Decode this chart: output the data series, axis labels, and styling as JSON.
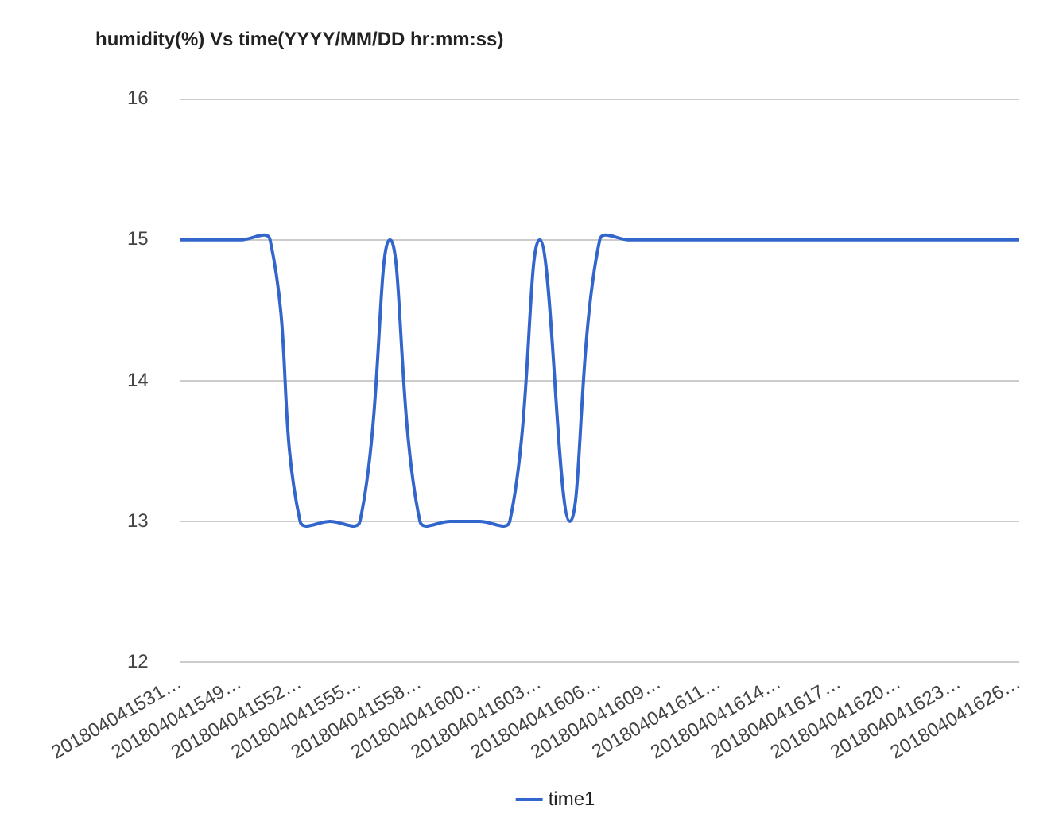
{
  "chart_data": {
    "type": "line",
    "title": "humidity(%) Vs time(YYYY/MM/DD hr:mm:ss)",
    "categories": [
      "201804041531…",
      null,
      "201804041549…",
      null,
      "201804041552…",
      null,
      "201804041555…",
      null,
      "201804041558…",
      null,
      "201804041600…",
      null,
      "201804041603…",
      null,
      "201804041606…",
      null,
      "201804041609…",
      null,
      "201804041611…",
      null,
      "201804041614…",
      null,
      "201804041617…",
      null,
      "201804041620…",
      null,
      "201804041623…",
      null,
      "201804041626…"
    ],
    "series": [
      {
        "name": "time1",
        "color": "#3366cc",
        "values": [
          15,
          15,
          15,
          15,
          13,
          13,
          13,
          15,
          13,
          13,
          13,
          13,
          15,
          13,
          15,
          15,
          15,
          15,
          15,
          15,
          15,
          15,
          15,
          15,
          15,
          15,
          15,
          15,
          15
        ]
      }
    ],
    "ylim": [
      12,
      16
    ],
    "yticks": [
      12,
      13,
      14,
      15,
      16
    ],
    "grid": "y",
    "legend": "bottom",
    "marker": "none",
    "line_style": "solid"
  }
}
